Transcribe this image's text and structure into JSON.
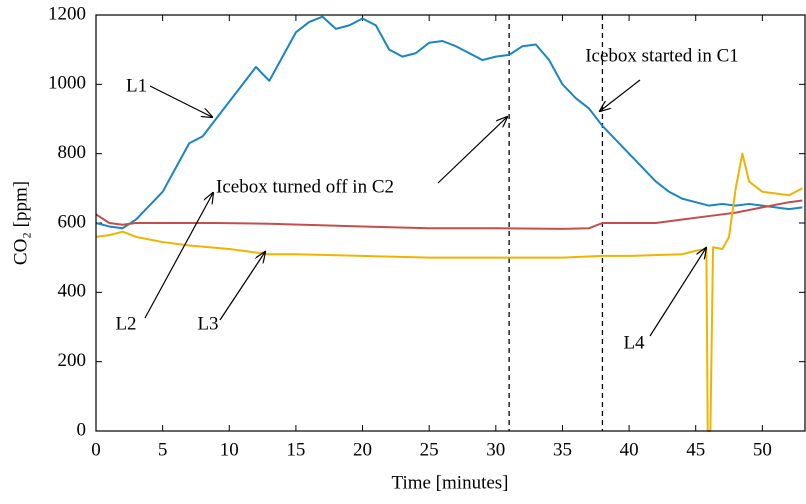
{
  "chart_data": {
    "type": "line",
    "xlabel": "Time [minutes]",
    "ylabel": "CO₂ [ppm]",
    "xlim": [
      0,
      53.2
    ],
    "ylim": [
      0,
      1200
    ],
    "xticks": [
      0,
      5,
      10,
      15,
      20,
      25,
      30,
      35,
      40,
      45,
      50
    ],
    "yticks": [
      0,
      200,
      400,
      600,
      800,
      1000,
      1200
    ],
    "vlines": [
      31,
      38
    ],
    "series": [
      {
        "name": "L1",
        "color": "#1a86c1",
        "x": [
          0,
          1,
          2,
          3,
          4,
          5,
          6,
          7,
          8,
          9,
          10,
          11,
          12,
          13,
          14,
          15,
          16,
          17,
          18,
          19,
          20,
          21,
          22,
          23,
          24,
          25,
          26,
          27,
          28,
          29,
          30,
          31,
          32,
          33,
          34,
          35,
          36,
          37,
          38,
          39,
          40,
          41,
          42,
          43,
          44,
          45,
          46,
          47,
          48,
          49,
          50,
          51,
          52,
          53
        ],
        "values": [
          600,
          590,
          585,
          610,
          650,
          690,
          760,
          830,
          850,
          900,
          950,
          1000,
          1050,
          1010,
          1080,
          1150,
          1180,
          1195,
          1160,
          1170,
          1190,
          1170,
          1100,
          1080,
          1090,
          1120,
          1125,
          1110,
          1090,
          1070,
          1080,
          1085,
          1110,
          1115,
          1070,
          1000,
          960,
          930,
          880,
          840,
          800,
          760,
          720,
          690,
          670,
          660,
          650,
          655,
          650,
          655,
          650,
          645,
          640,
          645
        ]
      },
      {
        "name": "L2",
        "color": "#c44e4e",
        "x": [
          0,
          1,
          2,
          3,
          5,
          9,
          13,
          20,
          25,
          30,
          35,
          37,
          38,
          40,
          42,
          44,
          46,
          48,
          50,
          52,
          53
        ],
        "values": [
          625,
          600,
          595,
          600,
          600,
          600,
          598,
          590,
          585,
          585,
          583,
          585,
          600,
          600,
          600,
          610,
          620,
          630,
          645,
          660,
          665
        ]
      },
      {
        "name": "L3",
        "color": "#f0b400",
        "x": [
          0,
          1,
          2,
          3,
          5,
          7,
          10,
          13,
          15,
          20,
          25,
          30,
          35,
          38,
          40,
          44,
          45,
          45.8,
          45.9,
          46.1,
          46.3,
          47,
          47.5,
          48,
          48.5,
          49,
          50,
          51,
          52,
          53
        ],
        "values": [
          560,
          565,
          575,
          560,
          545,
          535,
          525,
          510,
          510,
          505,
          500,
          500,
          500,
          505,
          505,
          510,
          520,
          525,
          0,
          0,
          530,
          525,
          560,
          700,
          800,
          720,
          690,
          685,
          680,
          700
        ]
      }
    ],
    "annotations": [
      "L1",
      "Icebox started in C1",
      "Icebox turned off in C2",
      "L2",
      "L3",
      "L4"
    ]
  }
}
